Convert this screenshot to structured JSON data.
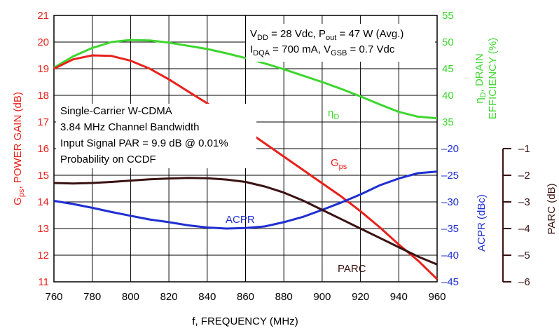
{
  "chart_data": {
    "type": "line",
    "x_axis": {
      "label": "f, FREQUENCY (MHz)",
      "range": [
        760,
        960
      ],
      "ticks": [
        "760",
        "780",
        "800",
        "820",
        "840",
        "860",
        "880",
        "900",
        "920",
        "940",
        "960"
      ]
    },
    "axes": {
      "gain": {
        "label_main": "G",
        "label_sub": "ps",
        "label_rest": ", POWER GAIN (dB)",
        "range": [
          11,
          21
        ],
        "ticks": [
          "11",
          "12",
          "13",
          "14",
          "15",
          "16",
          "17",
          "18",
          "19",
          "20",
          "21"
        ],
        "color": "#e8211b"
      },
      "efficiency": {
        "label_line1_main": "η",
        "label_line1_sub": "D",
        "label_line1_rest": ", DRAIN",
        "label_line2": "EFFICIENCY (%)",
        "range": [
          35,
          55
        ],
        "ticks": [
          "35",
          "40",
          "45",
          "50",
          "55"
        ],
        "color": "#3dd62e"
      },
      "acpr": {
        "label": "ACPR (dBc)",
        "range": [
          -45,
          -20
        ],
        "ticks": [
          "-45",
          "-40",
          "-35",
          "-30",
          "-25",
          "-20"
        ],
        "color": "#1f2fd1"
      },
      "parc": {
        "label": "PARC (dB)",
        "range": [
          -6,
          -1
        ],
        "ticks": [
          "-6",
          "-5",
          "-4",
          "-3",
          "-2",
          "-1"
        ],
        "color": "#3a1212"
      }
    },
    "annotations": {
      "conditions_line1": {
        "v_main": "V",
        "v_sub": "DD",
        "v_mid": " = 28 Vdc, P",
        "p_sub": "out",
        "p_rest": " = 47 W (Avg.)"
      },
      "conditions_line2": {
        "i_main": "I",
        "i_sub": "DQA",
        "i_mid": " = 700 mA, V",
        "v_sub": "GSB",
        "v_rest": " = 0.7 Vdc"
      },
      "signal_lines": [
        "Single-Carrier W-CDMA",
        "3.84 MHz Channel Bandwidth",
        "Input Signal PAR = 9.9 dB @ 0.01%",
        "Probability on CCDF"
      ]
    },
    "series": [
      {
        "name_main": "η",
        "name_sub": "D",
        "axis": "efficiency",
        "color": "#3dd62e",
        "x": [
          760,
          770,
          780,
          790,
          800,
          810,
          820,
          830,
          840,
          850,
          860,
          870,
          880,
          890,
          900,
          910,
          920,
          930,
          940,
          950,
          960
        ],
        "values": [
          45.2,
          47.3,
          48.9,
          50.0,
          50.4,
          50.3,
          49.9,
          49.3,
          48.7,
          47.9,
          47.0,
          46.0,
          44.9,
          43.7,
          42.5,
          41.2,
          39.8,
          38.3,
          36.9,
          36.0,
          35.7
        ]
      },
      {
        "name_main": "G",
        "name_sub": "ps",
        "axis": "gain",
        "color": "#e8211b",
        "x": [
          760,
          770,
          780,
          790,
          800,
          810,
          820,
          830,
          840,
          850,
          860,
          870,
          880,
          890,
          900,
          910,
          920,
          930,
          940,
          950,
          960
        ],
        "values": [
          19.0,
          19.35,
          19.5,
          19.48,
          19.3,
          19.0,
          18.6,
          18.15,
          17.7,
          17.2,
          16.7,
          16.2,
          15.7,
          15.2,
          14.7,
          14.2,
          13.65,
          13.05,
          12.4,
          11.8,
          11.1
        ]
      },
      {
        "name": "ACPR",
        "axis": "acpr",
        "color": "#1f2fd1",
        "x": [
          760,
          770,
          780,
          790,
          800,
          810,
          820,
          830,
          840,
          850,
          860,
          870,
          880,
          890,
          900,
          910,
          920,
          930,
          940,
          950,
          960
        ],
        "values": [
          -29.8,
          -30.4,
          -31.1,
          -31.9,
          -32.6,
          -33.3,
          -33.8,
          -34.4,
          -34.8,
          -35.0,
          -34.9,
          -34.6,
          -33.8,
          -32.8,
          -31.5,
          -30.1,
          -28.6,
          -26.9,
          -25.6,
          -24.6,
          -24.3
        ]
      },
      {
        "name": "PARC",
        "axis": "parc",
        "color": "#3a1212",
        "x": [
          760,
          770,
          780,
          790,
          800,
          810,
          820,
          830,
          840,
          850,
          860,
          870,
          880,
          890,
          900,
          910,
          920,
          930,
          940,
          950,
          960
        ],
        "values": [
          -2.29,
          -2.31,
          -2.29,
          -2.25,
          -2.2,
          -2.15,
          -2.12,
          -2.1,
          -2.11,
          -2.16,
          -2.25,
          -2.42,
          -2.65,
          -2.95,
          -3.3,
          -3.65,
          -4.0,
          -4.35,
          -4.7,
          -5.05,
          -5.35
        ]
      }
    ],
    "grid": true
  }
}
